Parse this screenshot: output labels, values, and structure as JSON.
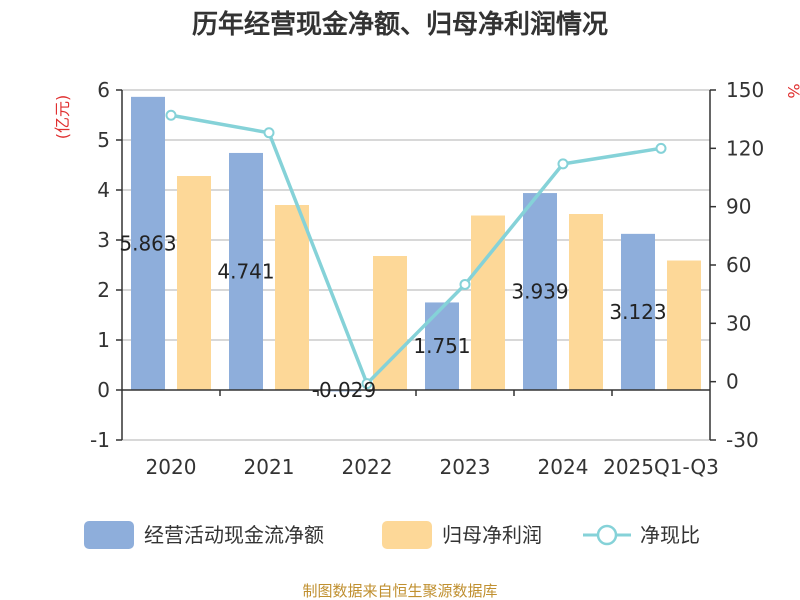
{
  "chart_data": {
    "type": "bar",
    "title": "历年经营现金净额、归母净利润情况",
    "categories": [
      "2020",
      "2021",
      "2022",
      "2023",
      "2024",
      "2025Q1-Q3"
    ],
    "left_axis": {
      "unit": "(亿元)",
      "ylim": [
        -1,
        6
      ],
      "ticks": [
        -1,
        0,
        1,
        2,
        3,
        4,
        5,
        6
      ]
    },
    "right_axis": {
      "unit": "%",
      "ylim": [
        -30,
        150
      ],
      "ticks": [
        -30,
        0,
        30,
        60,
        90,
        120,
        150
      ]
    },
    "series": [
      {
        "name": "经营活动现金流净额",
        "type": "bar",
        "axis": "left",
        "color": "#8eaedb",
        "values": [
          5.863,
          4.741,
          -0.029,
          1.751,
          3.939,
          3.123
        ],
        "labels": [
          "5.863",
          "4.741",
          "-0.029",
          "1.751",
          "3.939",
          "3.123"
        ]
      },
      {
        "name": "归母净利润",
        "type": "bar",
        "axis": "left",
        "color": "#fdd898",
        "values": [
          4.28,
          3.7,
          2.68,
          3.49,
          3.52,
          2.59
        ]
      },
      {
        "name": "净现比",
        "type": "line",
        "axis": "right",
        "color": "#85d2d8",
        "values": [
          137,
          128,
          -1,
          50,
          112,
          120
        ]
      }
    ],
    "grid": true,
    "legend": "bottom"
  },
  "source": "制图数据来自恒生聚源数据库",
  "colors": {
    "axis": "#333333",
    "grid": "#cccccc",
    "unit_left": "#e03030",
    "unit_right": "#e03030",
    "source": "#c09030"
  }
}
